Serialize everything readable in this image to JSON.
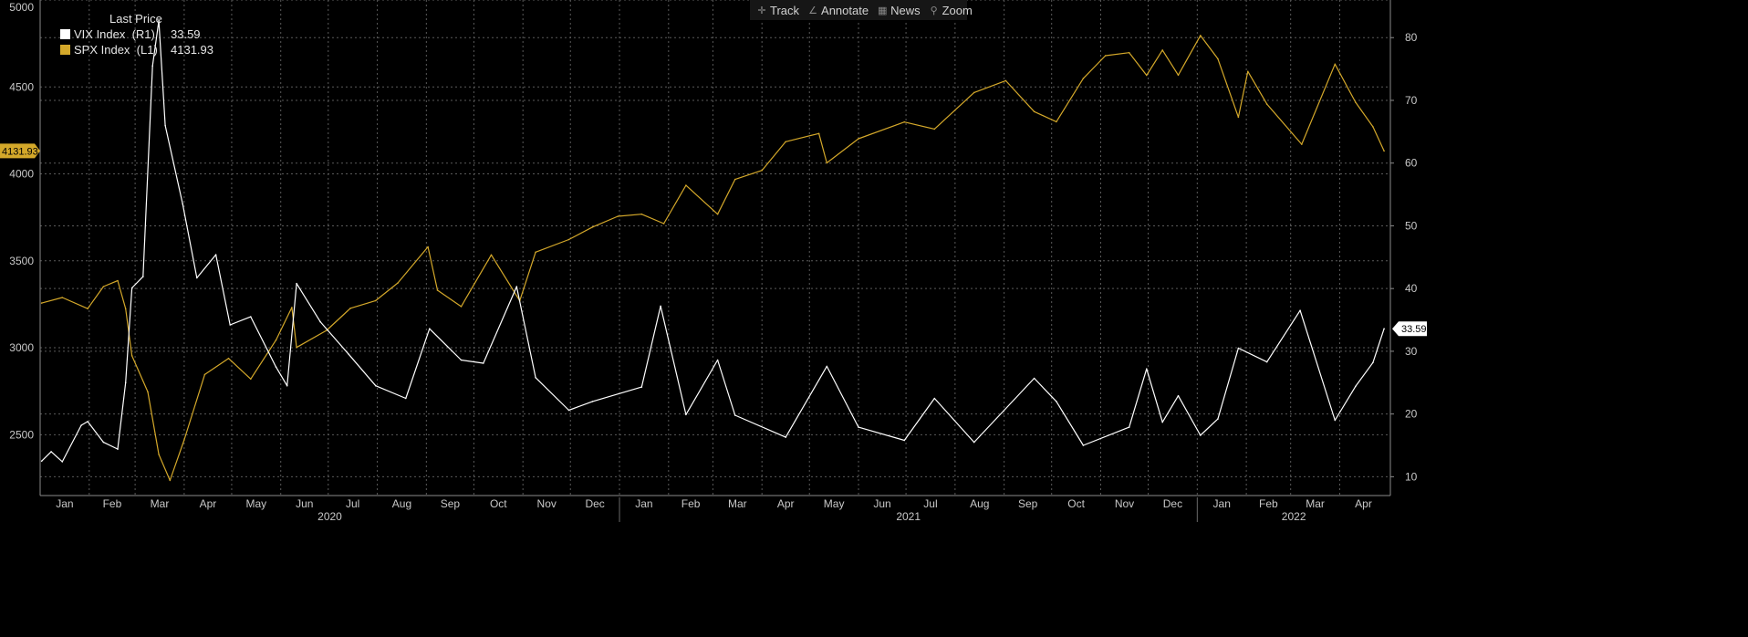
{
  "toolbar": {
    "track_label": "Track",
    "annotate_label": "Annotate",
    "news_label": "News",
    "zoom_label": "Zoom"
  },
  "legend": {
    "header": "Last Price",
    "items": [
      {
        "label": "VIX Index  (R1)",
        "value": "33.59",
        "color": "#ffffff"
      },
      {
        "label": "SPX Index  (L1)",
        "value": "4131.93",
        "color": "#d4a82a"
      }
    ]
  },
  "chart_data": {
    "type": "line",
    "grid": true,
    "legend_position": "top-left",
    "x_axis": {
      "months": [
        "Jan",
        "Feb",
        "Mar",
        "Apr",
        "May",
        "Jun",
        "Jul",
        "Aug",
        "Sep",
        "Oct",
        "Nov",
        "Dec",
        "Jan",
        "Feb",
        "Mar",
        "Apr",
        "May",
        "Jun",
        "Jul",
        "Aug",
        "Sep",
        "Oct",
        "Nov",
        "Dec",
        "Jan",
        "Feb",
        "Mar",
        "Apr"
      ],
      "years": [
        "2020",
        "2021",
        "2022"
      ]
    },
    "y_left": {
      "range": [
        2150,
        5000
      ],
      "ticks": [
        2500,
        3000,
        3500,
        4000,
        4500,
        5000
      ],
      "series": "SPX Index"
    },
    "y_right": {
      "range": [
        7,
        86
      ],
      "ticks": [
        10,
        20,
        30,
        40,
        50,
        60,
        70,
        80
      ],
      "series": "VIX Index"
    },
    "series": [
      {
        "name": "SPX Index",
        "axis": "left",
        "color": "#d4a82a",
        "last_value": "4131.93",
        "points": [
          [
            "2020-01-02",
            3257
          ],
          [
            "2020-01-15",
            3289
          ],
          [
            "2020-01-31",
            3225
          ],
          [
            "2020-02-10",
            3352
          ],
          [
            "2020-02-19",
            3386
          ],
          [
            "2020-02-24",
            3225
          ],
          [
            "2020-02-28",
            2954
          ],
          [
            "2020-03-09",
            2746
          ],
          [
            "2020-03-16",
            2386
          ],
          [
            "2020-03-23",
            2237
          ],
          [
            "2020-04-01",
            2470
          ],
          [
            "2020-04-14",
            2846
          ],
          [
            "2020-04-29",
            2939
          ],
          [
            "2020-05-13",
            2820
          ],
          [
            "2020-05-29",
            3044
          ],
          [
            "2020-06-08",
            3232
          ],
          [
            "2020-06-11",
            3002
          ],
          [
            "2020-06-30",
            3100
          ],
          [
            "2020-07-15",
            3227
          ],
          [
            "2020-07-31",
            3271
          ],
          [
            "2020-08-14",
            3373
          ],
          [
            "2020-09-02",
            3580
          ],
          [
            "2020-09-08",
            3331
          ],
          [
            "2020-09-23",
            3237
          ],
          [
            "2020-10-12",
            3534
          ],
          [
            "2020-10-30",
            3270
          ],
          [
            "2020-11-09",
            3550
          ],
          [
            "2020-11-30",
            3622
          ],
          [
            "2020-12-15",
            3694
          ],
          [
            "2020-12-31",
            3756
          ],
          [
            "2021-01-15",
            3768
          ],
          [
            "2021-01-29",
            3714
          ],
          [
            "2021-02-12",
            3934
          ],
          [
            "2021-03-04",
            3768
          ],
          [
            "2021-03-15",
            3968
          ],
          [
            "2021-04-01",
            4020
          ],
          [
            "2021-04-16",
            4185
          ],
          [
            "2021-05-07",
            4232
          ],
          [
            "2021-05-12",
            4063
          ],
          [
            "2021-06-01",
            4202
          ],
          [
            "2021-06-30",
            4298
          ],
          [
            "2021-07-19",
            4258
          ],
          [
            "2021-08-13",
            4468
          ],
          [
            "2021-09-02",
            4536
          ],
          [
            "2021-09-20",
            4358
          ],
          [
            "2021-10-04",
            4300
          ],
          [
            "2021-10-21",
            4549
          ],
          [
            "2021-11-04",
            4680
          ],
          [
            "2021-11-19",
            4697
          ],
          [
            "2021-11-30",
            4567
          ],
          [
            "2021-12-10",
            4712
          ],
          [
            "2021-12-20",
            4568
          ],
          [
            "2022-01-03",
            4796
          ],
          [
            "2022-01-14",
            4662
          ],
          [
            "2022-01-27",
            4326
          ],
          [
            "2022-02-02",
            4589
          ],
          [
            "2022-02-14",
            4401
          ],
          [
            "2022-03-08",
            4170
          ],
          [
            "2022-03-29",
            4631
          ],
          [
            "2022-04-11",
            4412
          ],
          [
            "2022-04-22",
            4271
          ],
          [
            "2022-04-29",
            4131.93
          ]
        ]
      },
      {
        "name": "VIX Index",
        "axis": "right",
        "color": "#ffffff",
        "last_value": "33.59",
        "points": [
          [
            "2020-01-02",
            12.5
          ],
          [
            "2020-01-08",
            14.0
          ],
          [
            "2020-01-15",
            12.4
          ],
          [
            "2020-01-27",
            18.2
          ],
          [
            "2020-01-31",
            18.8
          ],
          [
            "2020-02-10",
            15.5
          ],
          [
            "2020-02-19",
            14.4
          ],
          [
            "2020-02-24",
            25.0
          ],
          [
            "2020-02-28",
            40.1
          ],
          [
            "2020-03-06",
            41.9
          ],
          [
            "2020-03-12",
            75.5
          ],
          [
            "2020-03-16",
            82.7
          ],
          [
            "2020-03-20",
            66.0
          ],
          [
            "2020-03-31",
            53.5
          ],
          [
            "2020-04-09",
            41.7
          ],
          [
            "2020-04-21",
            45.4
          ],
          [
            "2020-04-30",
            34.2
          ],
          [
            "2020-05-13",
            35.5
          ],
          [
            "2020-05-29",
            27.5
          ],
          [
            "2020-06-05",
            24.5
          ],
          [
            "2020-06-11",
            40.8
          ],
          [
            "2020-06-26",
            34.7
          ],
          [
            "2020-07-14",
            29.5
          ],
          [
            "2020-07-31",
            24.5
          ],
          [
            "2020-08-19",
            22.5
          ],
          [
            "2020-09-03",
            33.6
          ],
          [
            "2020-09-23",
            28.6
          ],
          [
            "2020-10-07",
            28.1
          ],
          [
            "2020-10-28",
            40.3
          ],
          [
            "2020-11-09",
            25.8
          ],
          [
            "2020-11-30",
            20.6
          ],
          [
            "2020-12-15",
            22.0
          ],
          [
            "2021-01-15",
            24.3
          ],
          [
            "2021-01-27",
            37.2
          ],
          [
            "2021-02-12",
            19.9
          ],
          [
            "2021-03-04",
            28.6
          ],
          [
            "2021-03-15",
            19.8
          ],
          [
            "2021-04-16",
            16.3
          ],
          [
            "2021-05-12",
            27.6
          ],
          [
            "2021-06-01",
            17.9
          ],
          [
            "2021-06-30",
            15.8
          ],
          [
            "2021-07-19",
            22.5
          ],
          [
            "2021-08-13",
            15.5
          ],
          [
            "2021-09-20",
            25.7
          ],
          [
            "2021-10-04",
            22.0
          ],
          [
            "2021-10-21",
            15.0
          ],
          [
            "2021-11-19",
            17.9
          ],
          [
            "2021-11-30",
            27.2
          ],
          [
            "2021-12-10",
            18.7
          ],
          [
            "2021-12-20",
            22.9
          ],
          [
            "2022-01-03",
            16.6
          ],
          [
            "2022-01-14",
            19.2
          ],
          [
            "2022-01-27",
            30.5
          ],
          [
            "2022-02-14",
            28.3
          ],
          [
            "2022-03-07",
            36.5
          ],
          [
            "2022-03-29",
            19.0
          ],
          [
            "2022-04-11",
            24.4
          ],
          [
            "2022-04-22",
            28.2
          ],
          [
            "2022-04-29",
            33.59
          ]
        ]
      }
    ]
  }
}
